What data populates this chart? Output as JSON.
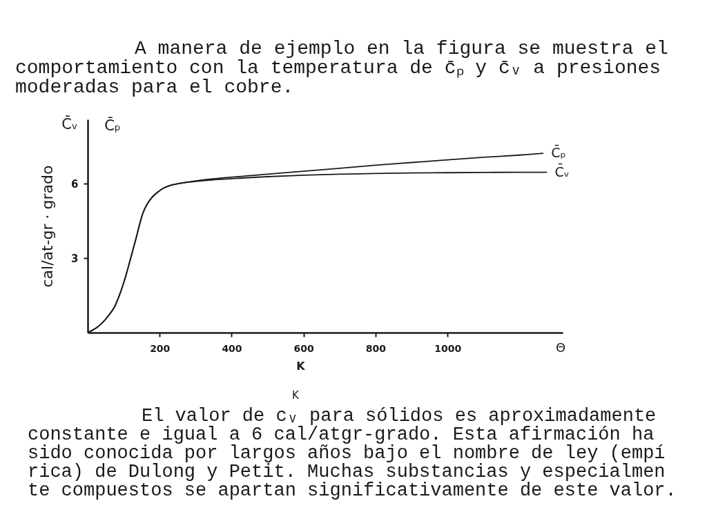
{
  "chart_data": {
    "type": "line",
    "title": "A manera de ejemplo en la figura se muestra el\ncomportamiento con la temperatura de c̄ₚ y c̄ᵥ a presiones\nmoderadas para el cobre.",
    "xlabel": "K",
    "ylabel": "cal/at-gr · grado",
    "annotations": [
      "C̄ᵥ",
      "C̄ₚ",
      "Θ",
      "K",
      "El valor de cᵥ para sólidos es aproximadamente\nconstante e igual a 6 cal/atgr-grado. Esta afirmación ha\nsido conocida por largos años bajo el nombre de ley (empí\nrica) de Dulong y Petit. Muchas substancias y especialmen\nte compuestos se apartan significativamente de este valor."
    ],
    "series": [
      {
        "name": "C̄ₚ",
        "color": "#1a1a1a",
        "x": [
          0,
          25,
          57,
          75,
          89,
          102,
          115,
          125,
          134,
          144,
          153,
          166,
          179,
          195,
          211,
          230,
          249,
          300,
          400,
          500,
          600,
          700,
          800,
          900,
          1000,
          1100,
          1200,
          1265
        ],
        "values": [
          0,
          0.2,
          0.67,
          1.05,
          1.54,
          2.1,
          2.76,
          3.3,
          3.78,
          4.35,
          4.8,
          5.2,
          5.46,
          5.67,
          5.83,
          5.94,
          6.0,
          6.12,
          6.27,
          6.39,
          6.51,
          6.63,
          6.75,
          6.86,
          6.97,
          7.07,
          7.16,
          7.23
        ]
      },
      {
        "name": "C̄ᵥ",
        "color": "#1a1a1a",
        "x": [
          0,
          25,
          57,
          75,
          89,
          102,
          115,
          125,
          134,
          144,
          153,
          166,
          179,
          195,
          211,
          230,
          249,
          300,
          400,
          500,
          600,
          700,
          800,
          900,
          1000,
          1100,
          1200,
          1275
        ],
        "values": [
          0,
          0.2,
          0.67,
          1.05,
          1.54,
          2.1,
          2.76,
          3.3,
          3.78,
          4.35,
          4.8,
          5.2,
          5.46,
          5.67,
          5.83,
          5.94,
          6.0,
          6.1,
          6.21,
          6.29,
          6.35,
          6.39,
          6.42,
          6.44,
          6.45,
          6.46,
          6.47,
          6.47
        ]
      }
    ],
    "xlim": [
      0,
      1320
    ],
    "ylim": [
      0,
      8.6
    ],
    "xticks": [
      200,
      400,
      600,
      800,
      1000
    ],
    "yticks": [
      3,
      6
    ],
    "grid": false,
    "legend": false,
    "line_style": "solid"
  }
}
